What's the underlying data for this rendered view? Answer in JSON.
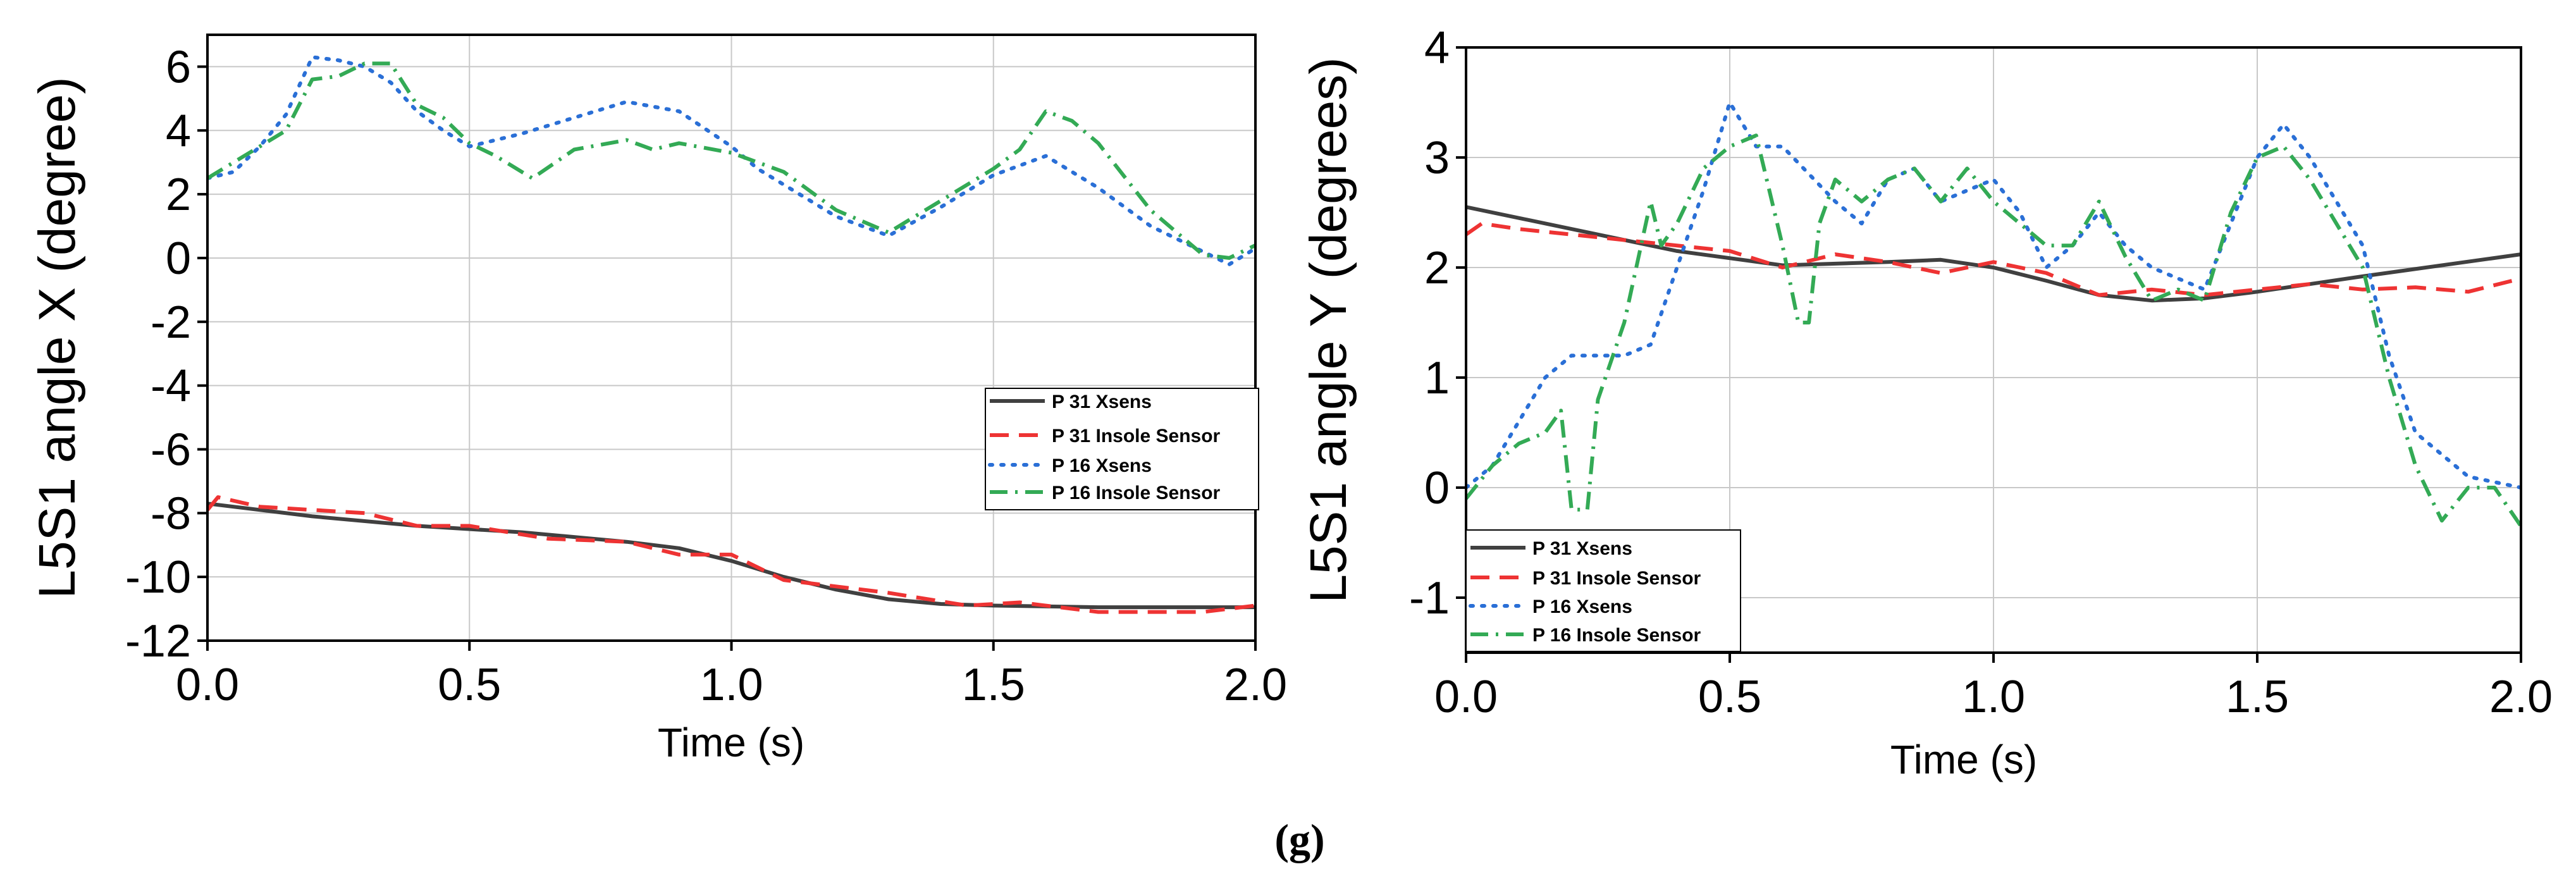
{
  "caption": "(g)",
  "colors": {
    "p31_xsens": "#404040",
    "p31_insole": "#ee3333",
    "p16_xsens": "#2a6fd6",
    "p16_insole": "#33aa55",
    "grid": "#c8c8c8",
    "axis": "#000000"
  },
  "chart_data": [
    {
      "type": "line",
      "title": "",
      "xlabel": "Time (s)",
      "ylabel": "L5S1 angle X (degree)",
      "xlim": [
        0,
        2
      ],
      "ylim": [
        -12,
        7
      ],
      "xticks": [
        0,
        0.5,
        1,
        1.5,
        2
      ],
      "xtick_labels": [
        "0.0",
        "0.5",
        "1.0",
        "1.5",
        "2.0"
      ],
      "yticks": [
        -12,
        -10,
        -8,
        -6,
        -4,
        -2,
        0,
        2,
        4,
        6
      ],
      "ytick_labels": [
        "-12",
        "-10",
        "-8",
        "-6",
        "-4",
        "-2",
        "0",
        "2",
        "4",
        "6"
      ],
      "grid": true,
      "legend_position": "lower-right",
      "series": [
        {
          "name": "P 31 Xsens",
          "style": "solid",
          "color_key": "p31_xsens",
          "x": [
            0,
            0.2,
            0.4,
            0.6,
            0.8,
            0.9,
            1.0,
            1.1,
            1.2,
            1.3,
            1.4,
            1.5,
            1.7,
            2.0
          ],
          "y": [
            -7.7,
            -8.1,
            -8.4,
            -8.6,
            -8.9,
            -9.1,
            -9.5,
            -10.0,
            -10.4,
            -10.7,
            -10.85,
            -10.9,
            -10.95,
            -10.95
          ]
        },
        {
          "name": "P 31 Insole Sensor",
          "style": "dashed",
          "color_key": "p31_insole",
          "x": [
            0,
            0.02,
            0.1,
            0.3,
            0.4,
            0.5,
            0.65,
            0.8,
            0.9,
            1.0,
            1.1,
            1.3,
            1.45,
            1.55,
            1.7,
            1.9,
            2.0
          ],
          "y": [
            -7.9,
            -7.5,
            -7.8,
            -8.0,
            -8.4,
            -8.4,
            -8.8,
            -8.9,
            -9.3,
            -9.3,
            -10.1,
            -10.5,
            -10.9,
            -10.8,
            -11.1,
            -11.1,
            -10.9
          ]
        },
        {
          "name": "P 16 Xsens",
          "style": "dotted",
          "color_key": "p16_xsens",
          "x": [
            0,
            0.05,
            0.1,
            0.15,
            0.2,
            0.25,
            0.3,
            0.35,
            0.4,
            0.45,
            0.5,
            0.6,
            0.7,
            0.8,
            0.9,
            1.0,
            1.05,
            1.1,
            1.2,
            1.3,
            1.4,
            1.5,
            1.6,
            1.7,
            1.8,
            1.9,
            1.95,
            2.0
          ],
          "y": [
            2.5,
            2.7,
            3.5,
            4.5,
            6.3,
            6.2,
            6.0,
            5.5,
            4.6,
            4.0,
            3.5,
            3.9,
            4.4,
            4.9,
            4.6,
            3.5,
            2.8,
            2.3,
            1.3,
            0.7,
            1.6,
            2.6,
            3.2,
            2.2,
            1.0,
            0.2,
            -0.2,
            0.3
          ]
        },
        {
          "name": "P 16 Insole Sensor",
          "style": "dashdot",
          "color_key": "p16_insole",
          "x": [
            0,
            0.05,
            0.1,
            0.15,
            0.2,
            0.25,
            0.3,
            0.35,
            0.4,
            0.45,
            0.5,
            0.55,
            0.62,
            0.7,
            0.8,
            0.85,
            0.9,
            1.0,
            1.1,
            1.2,
            1.3,
            1.4,
            1.5,
            1.55,
            1.6,
            1.65,
            1.7,
            1.8,
            1.9,
            1.95,
            2.0
          ],
          "y": [
            2.5,
            3.0,
            3.5,
            4.0,
            5.6,
            5.7,
            6.1,
            6.1,
            4.8,
            4.4,
            3.6,
            3.2,
            2.5,
            3.4,
            3.7,
            3.4,
            3.6,
            3.3,
            2.7,
            1.5,
            0.8,
            1.8,
            2.8,
            3.4,
            4.6,
            4.3,
            3.6,
            1.5,
            0.1,
            0.0,
            0.4
          ]
        }
      ]
    },
    {
      "type": "line",
      "title": "",
      "xlabel": "Time (s)",
      "ylabel": "L5S1 angle Y (degrees)",
      "xlim": [
        0,
        2
      ],
      "ylim": [
        -1.5,
        4
      ],
      "xticks": [
        0,
        0.5,
        1,
        1.5,
        2
      ],
      "xtick_labels": [
        "0.0",
        "0.5",
        "1.0",
        "1.5",
        "2.0"
      ],
      "yticks": [
        -1,
        0,
        1,
        2,
        3,
        4
      ],
      "ytick_labels": [
        "-1",
        "0",
        "1",
        "2",
        "3",
        "4"
      ],
      "grid": true,
      "legend_position": "lower-left",
      "series": [
        {
          "name": "P 31 Xsens",
          "style": "solid",
          "color_key": "p31_xsens",
          "x": [
            0,
            0.2,
            0.4,
            0.6,
            0.8,
            0.9,
            1.0,
            1.1,
            1.2,
            1.3,
            1.4,
            1.5,
            1.7,
            2.0
          ],
          "y": [
            2.55,
            2.35,
            2.15,
            2.02,
            2.05,
            2.07,
            2.0,
            1.88,
            1.75,
            1.7,
            1.72,
            1.78,
            1.92,
            2.12
          ]
        },
        {
          "name": "P 31 Insole Sensor",
          "style": "dashed",
          "color_key": "p31_insole",
          "x": [
            0,
            0.03,
            0.1,
            0.3,
            0.5,
            0.6,
            0.7,
            0.8,
            0.9,
            1.0,
            1.1,
            1.2,
            1.3,
            1.4,
            1.5,
            1.6,
            1.7,
            1.8,
            1.9,
            2.0
          ],
          "y": [
            2.3,
            2.4,
            2.35,
            2.25,
            2.15,
            2.0,
            2.12,
            2.05,
            1.95,
            2.05,
            1.95,
            1.75,
            1.8,
            1.75,
            1.8,
            1.85,
            1.8,
            1.82,
            1.78,
            1.9
          ]
        },
        {
          "name": "P 16 Xsens",
          "style": "dotted",
          "color_key": "p16_xsens",
          "x": [
            0,
            0.05,
            0.1,
            0.15,
            0.2,
            0.25,
            0.3,
            0.35,
            0.4,
            0.45,
            0.5,
            0.55,
            0.6,
            0.7,
            0.75,
            0.8,
            0.85,
            0.9,
            1.0,
            1.05,
            1.1,
            1.15,
            1.2,
            1.25,
            1.3,
            1.4,
            1.45,
            1.5,
            1.55,
            1.6,
            1.7,
            1.75,
            1.8,
            1.9,
            2.0
          ],
          "y": [
            0,
            0.2,
            0.6,
            1.0,
            1.2,
            1.2,
            1.2,
            1.3,
            2.0,
            2.7,
            3.5,
            3.1,
            3.1,
            2.6,
            2.4,
            2.8,
            2.9,
            2.6,
            2.8,
            2.5,
            2.0,
            2.2,
            2.5,
            2.2,
            2.0,
            1.8,
            2.4,
            3.0,
            3.3,
            3.0,
            2.2,
            1.2,
            0.5,
            0.1,
            0.0
          ]
        },
        {
          "name": "P 16 Insole Sensor",
          "style": "dashdot",
          "color_key": "p16_insole",
          "x": [
            0,
            0.05,
            0.1,
            0.15,
            0.18,
            0.2,
            0.23,
            0.25,
            0.3,
            0.35,
            0.37,
            0.4,
            0.45,
            0.5,
            0.55,
            0.6,
            0.63,
            0.65,
            0.67,
            0.7,
            0.75,
            0.8,
            0.85,
            0.9,
            0.95,
            1.0,
            1.1,
            1.15,
            1.2,
            1.25,
            1.3,
            1.35,
            1.4,
            1.45,
            1.5,
            1.55,
            1.6,
            1.7,
            1.75,
            1.8,
            1.85,
            1.9,
            1.95,
            2.0
          ],
          "y": [
            -0.1,
            0.2,
            0.4,
            0.5,
            0.7,
            -0.2,
            -0.2,
            0.8,
            1.5,
            2.6,
            2.2,
            2.4,
            2.9,
            3.1,
            3.2,
            2.2,
            1.5,
            1.5,
            2.4,
            2.8,
            2.6,
            2.8,
            2.9,
            2.6,
            2.9,
            2.6,
            2.2,
            2.2,
            2.6,
            2.1,
            1.7,
            1.8,
            1.7,
            2.5,
            3.0,
            3.1,
            2.8,
            2.0,
            1.0,
            0.2,
            -0.3,
            0.0,
            0.0,
            -0.35
          ]
        }
      ]
    }
  ]
}
